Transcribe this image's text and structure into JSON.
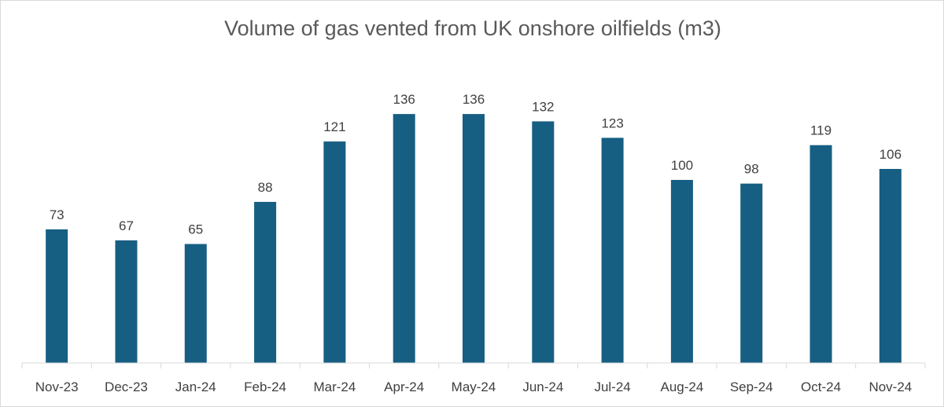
{
  "chart_data": {
    "type": "bar",
    "title": "Volume of gas vented from UK onshore oilfields (m3)",
    "categories": [
      "Nov-23",
      "Dec-23",
      "Jan-24",
      "Feb-24",
      "Mar-24",
      "Apr-24",
      "May-24",
      "Jun-24",
      "Jul-24",
      "Aug-24",
      "Sep-24",
      "Oct-24",
      "Nov-24"
    ],
    "values": [
      73,
      67,
      65,
      88,
      121,
      136,
      136,
      132,
      123,
      100,
      98,
      119,
      106
    ],
    "xlabel": "",
    "ylabel": "",
    "ylim": [
      0,
      140
    ],
    "grid": false,
    "legend": "none",
    "bar_color": "#175e83",
    "label_color": "#404040",
    "title_color": "#595959",
    "axis_color": "#d9d9d9"
  }
}
